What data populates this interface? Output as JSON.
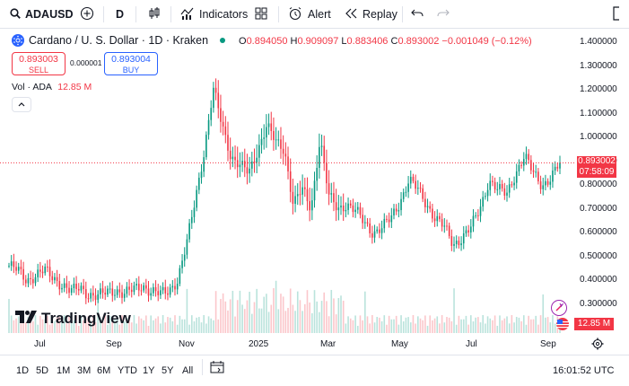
{
  "toolbar": {
    "symbol": "ADAUSD",
    "interval": "D",
    "indicators_label": "Indicators",
    "alert_label": "Alert",
    "replay_label": "Replay"
  },
  "legend": {
    "title": "Cardano / U. S. Dollar · 1D · Kraken",
    "o_key": "O",
    "o_val": "0.894050",
    "h_key": "H",
    "h_val": "0.909097",
    "l_key": "L",
    "l_val": "0.883406",
    "c_key": "C",
    "c_val": "0.893002",
    "change": "−0.001049 (−0.12%)"
  },
  "trade": {
    "sell_price": "0.893003",
    "sell_label": "SELL",
    "spread": "0.000001",
    "buy_price": "0.893004",
    "buy_label": "BUY"
  },
  "volume": {
    "label": "Vol · ADA",
    "value": "12.85 M",
    "badge": "12.85 M"
  },
  "price_scale": [
    "1.400000",
    "1.300000",
    "1.200000",
    "1.100000",
    "1.000000",
    "0.900000",
    "0.800000",
    "0.700000",
    "0.600000",
    "0.500000",
    "0.400000",
    "0.300000"
  ],
  "price_label": {
    "price": "0.893002",
    "countdown": "07:58:09"
  },
  "time_axis": [
    "Jul",
    "Sep",
    "Nov",
    "2025",
    "Mar",
    "May",
    "Jul",
    "Sep"
  ],
  "watermark": "TradingView",
  "bottom": {
    "ranges": [
      "1D",
      "5D",
      "1M",
      "3M",
      "6M",
      "YTD",
      "1Y",
      "5Y",
      "All"
    ],
    "clock": "16:01:52 UTC"
  },
  "colors": {
    "up": "#089981",
    "down": "#f23645",
    "accent": "#2962ff"
  },
  "chart_data": {
    "type": "candlestick",
    "title": "Cardano / U. S. Dollar · 1D · Kraken",
    "ylim": [
      0.2,
      1.45
    ],
    "x_ticks": [
      "Jul",
      "Sep",
      "Nov",
      "2025",
      "Mar",
      "May",
      "Jul",
      "Sep"
    ],
    "close_series_approx": [
      0.46,
      0.44,
      0.4,
      0.42,
      0.44,
      0.41,
      0.38,
      0.35,
      0.37,
      0.34,
      0.33,
      0.35,
      0.36,
      0.34,
      0.36,
      0.38,
      0.35,
      0.34,
      0.36,
      0.4,
      0.55,
      0.75,
      0.95,
      1.2,
      1.05,
      0.92,
      0.88,
      0.85,
      0.95,
      1.05,
      0.98,
      0.95,
      0.72,
      0.78,
      0.7,
      1.0,
      0.75,
      0.7,
      0.72,
      0.69,
      0.64,
      0.6,
      0.62,
      0.66,
      0.73,
      0.82,
      0.78,
      0.72,
      0.66,
      0.62,
      0.55,
      0.58,
      0.62,
      0.7,
      0.82,
      0.78,
      0.76,
      0.85,
      0.92,
      0.85,
      0.8,
      0.83,
      0.89
    ],
    "last_close": 0.893002
  }
}
